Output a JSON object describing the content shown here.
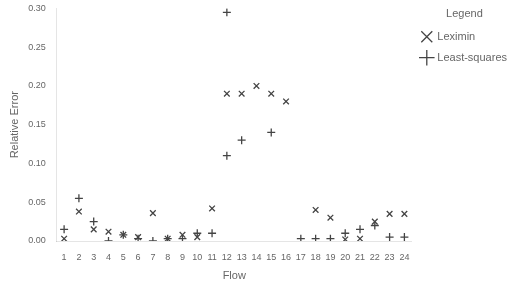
{
  "chart_data": {
    "type": "scatter",
    "x_label": "Flow",
    "y_label": "Relative Error",
    "legend_title": "Legend",
    "legend": "right",
    "grid": false,
    "series": [
      {
        "name": "Leximin",
        "color": "#444444",
        "marker": "x",
        "x": [
          1,
          2,
          3,
          4,
          5,
          6,
          7,
          8,
          9,
          10,
          11,
          12,
          13,
          14,
          15,
          16,
          18,
          19,
          20,
          21,
          22,
          23,
          24
        ],
        "values": [
          0.003,
          0.038,
          0.015,
          0.012,
          0.008,
          0.005,
          0.036,
          0.003,
          0.008,
          0.005,
          0.042,
          0.19,
          0.19,
          0.2,
          0.19,
          0.18,
          0.04,
          0.03,
          0.002,
          0.003,
          0.025,
          0.035,
          0.035
        ]
      },
      {
        "name": "Least-squares",
        "color": "#444444",
        "marker": "+",
        "x": [
          1,
          2,
          3,
          4,
          5,
          6,
          7,
          8,
          9,
          10,
          11,
          12,
          13,
          15,
          17,
          18,
          19,
          20,
          21,
          22,
          23,
          24,
          12
        ],
        "values": [
          0.015,
          0.055,
          0.025,
          0.0,
          0.008,
          0.003,
          0.0,
          0.003,
          0.003,
          0.01,
          0.01,
          0.11,
          0.13,
          0.14,
          0.003,
          0.003,
          0.003,
          0.01,
          0.015,
          0.02,
          0.005,
          0.005,
          0.295
        ]
      }
    ],
    "xlim": [
      0.5,
      24.5
    ],
    "xticks": [
      1,
      2,
      3,
      4,
      5,
      6,
      7,
      8,
      9,
      10,
      11,
      12,
      13,
      14,
      15,
      16,
      17,
      18,
      19,
      20,
      21,
      22,
      23,
      24
    ],
    "ylim": [
      0.0,
      0.3
    ],
    "yticks": [
      {
        "value": 0,
        "label": "0.00"
      },
      0.05,
      {
        "value": 0.1,
        "label": "0.10"
      },
      0.15,
      {
        "value": 0.2,
        "label": "0.20"
      },
      0.25,
      {
        "value": 0.3,
        "label": "0.30"
      }
    ]
  }
}
